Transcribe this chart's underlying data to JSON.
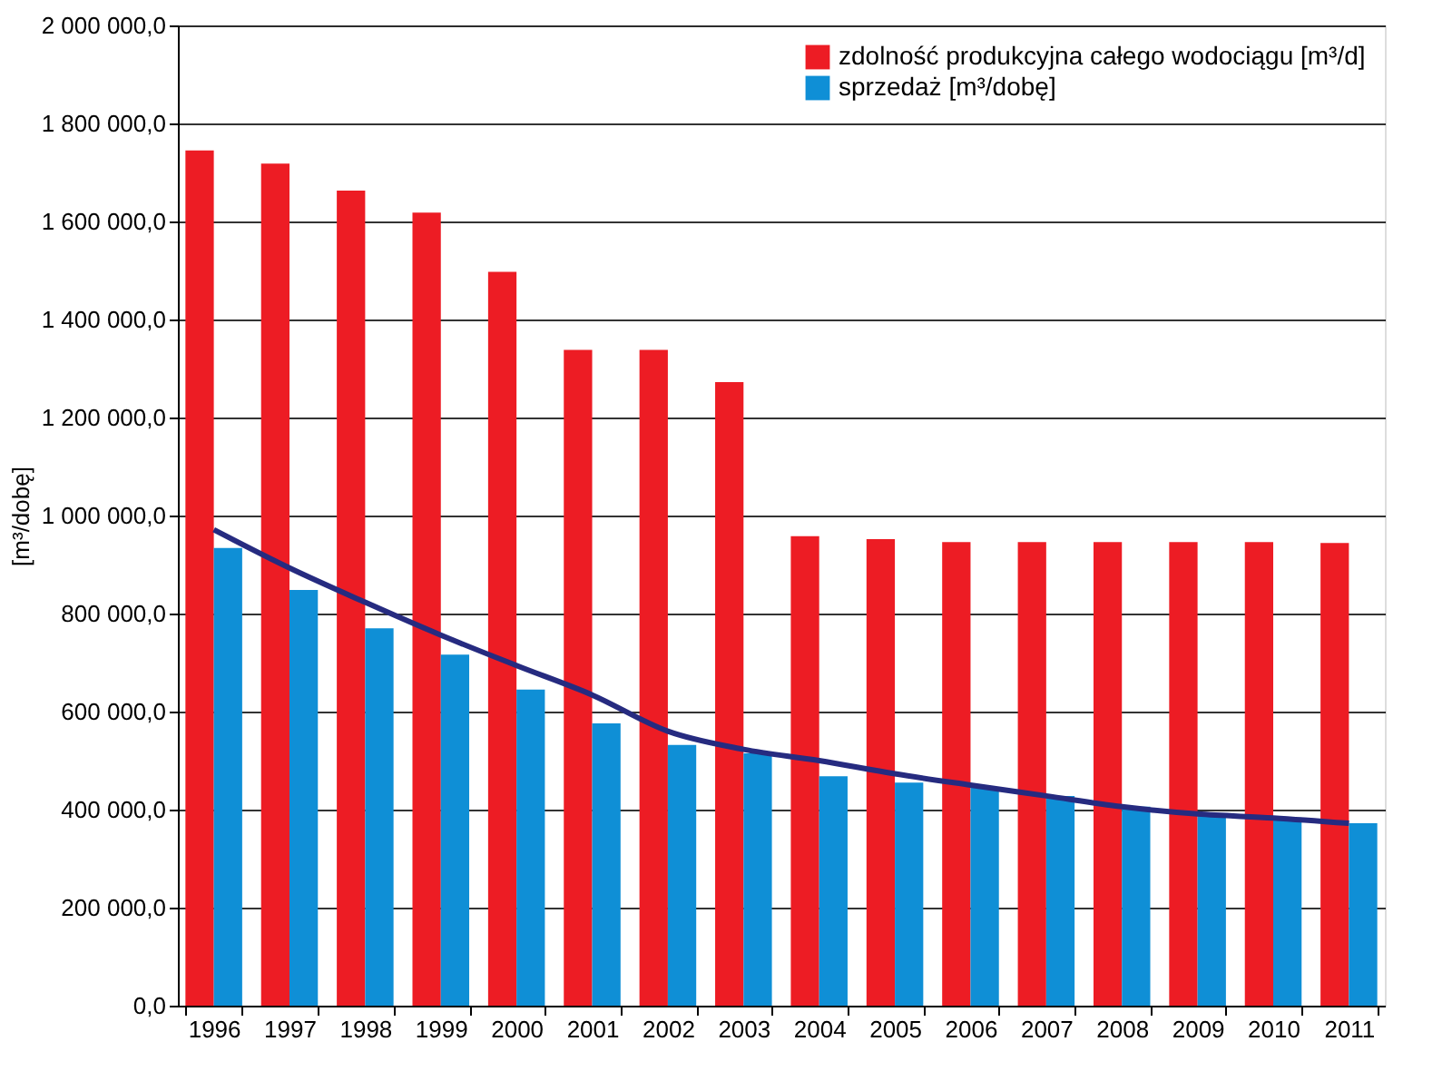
{
  "chart_data": {
    "type": "bar",
    "ylabel": "[m³/dobę]",
    "categories": [
      "1996",
      "1997",
      "1998",
      "1999",
      "2000",
      "2001",
      "2002",
      "2003",
      "2004",
      "2005",
      "2006",
      "2007",
      "2008",
      "2009",
      "2010",
      "2011"
    ],
    "series": [
      {
        "name": "zdolność produkcyjna całego wodociągu [m³/d]",
        "color": "#ed1c24",
        "values": [
          1745000,
          1718000,
          1663000,
          1618000,
          1497000,
          1338000,
          1338000,
          1272000,
          958000,
          952000,
          946000,
          946000,
          946000,
          946000,
          946000,
          944000
        ]
      },
      {
        "name": "sprzedaż [m³/dobę]",
        "color": "#0f8fd6",
        "values": [
          934000,
          848000,
          770000,
          716000,
          645000,
          576000,
          532000,
          515000,
          468000,
          455000,
          446000,
          428000,
          406000,
          391000,
          384000,
          372000
        ]
      },
      {
        "type": "line",
        "line_style": "solid",
        "color": "#262b80",
        "values": [
          971000,
          893000,
          823000,
          756000,
          694000,
          634000,
          560000,
          523000,
          500000,
          473000,
          450000,
          428000,
          406000,
          391000,
          383000,
          372000
        ]
      }
    ],
    "ylim": [
      0,
      2000000
    ],
    "yticks": [
      {
        "value": 0,
        "label": "0,0"
      },
      {
        "value": 200000,
        "label": "200 000,0"
      },
      {
        "value": 400000,
        "label": "400 000,0"
      },
      {
        "value": 600000,
        "label": "600 000,0"
      },
      {
        "value": 800000,
        "label": "800 000,0"
      },
      {
        "value": 1000000,
        "label": "1 000 000,0"
      },
      {
        "value": 1200000,
        "label": "1 200 000,0"
      },
      {
        "value": 1400000,
        "label": "1 400 000,0"
      },
      {
        "value": 1600000,
        "label": "1 600 000,0"
      },
      {
        "value": 1800000,
        "label": "1 800 000,0"
      },
      {
        "value": 2000000,
        "label": "2 000 000,0"
      }
    ],
    "grid": "y",
    "legend": "top right"
  }
}
